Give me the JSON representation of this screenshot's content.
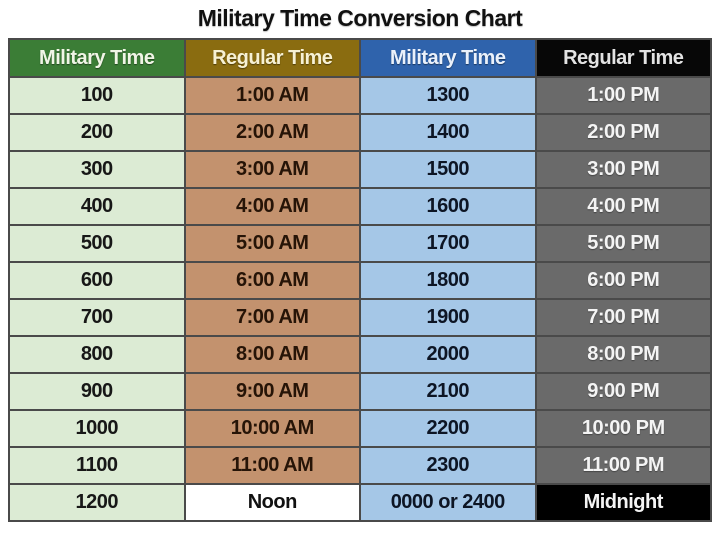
{
  "title": "Military Time Conversion Chart",
  "chart_data": {
    "type": "table",
    "title": "Military Time Conversion Chart",
    "columns": [
      "Military Time",
      "Regular Time",
      "Military Time",
      "Regular Time"
    ],
    "rows": [
      [
        "100",
        "1:00 AM",
        "1300",
        "1:00 PM"
      ],
      [
        "200",
        "2:00 AM",
        "1400",
        "2:00 PM"
      ],
      [
        "300",
        "3:00 AM",
        "1500",
        "3:00 PM"
      ],
      [
        "400",
        "4:00 AM",
        "1600",
        "4:00 PM"
      ],
      [
        "500",
        "5:00 AM",
        "1700",
        "5:00 PM"
      ],
      [
        "600",
        "6:00 AM",
        "1800",
        "6:00 PM"
      ],
      [
        "700",
        "7:00 AM",
        "1900",
        "7:00 PM"
      ],
      [
        "800",
        "8:00 AM",
        "2000",
        "8:00 PM"
      ],
      [
        "900",
        "9:00 AM",
        "2100",
        "9:00 PM"
      ],
      [
        "1000",
        "10:00 AM",
        "2200",
        "10:00 PM"
      ],
      [
        "1100",
        "11:00 AM",
        "2300",
        "11:00 PM"
      ],
      [
        "1200",
        "Noon",
        "0000 or 2400",
        "Midnight"
      ]
    ],
    "layout_hints": {
      "grid": true,
      "legend": "none",
      "special_last_row": "Noon cell has white background, Midnight cell has black background"
    }
  },
  "colors": {
    "header_green": "#3b7d36",
    "header_olive": "#8a6c10",
    "header_blue": "#2f63ac",
    "header_black": "#070707",
    "cell_green": "#dcebd4",
    "cell_tan": "#c3926e",
    "cell_blue": "#a5c7e7",
    "cell_gray": "#6a6a6a",
    "cell_white": "#ffffff",
    "cell_black": "#000000",
    "border": "#4a4a4a",
    "title_text": "#111111"
  }
}
